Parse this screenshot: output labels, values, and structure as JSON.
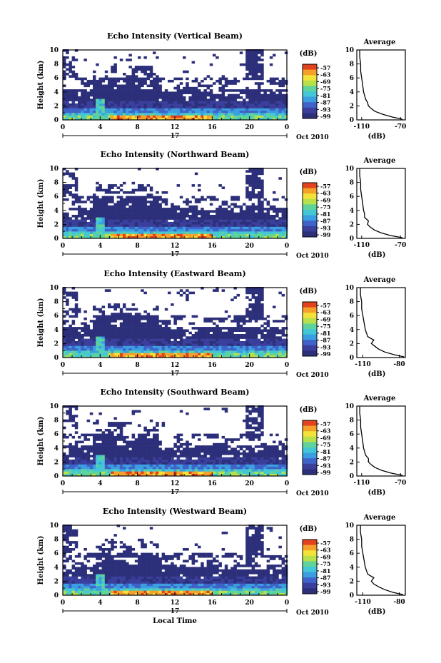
{
  "chart_data": [
    {
      "type": "heatmap",
      "title": "Echo Intensity (Vertical Beam)",
      "ylabel": "Height (km)",
      "xlabel": "",
      "x_ticks": [
        "0",
        "4",
        "8",
        "12",
        "16",
        "20",
        "0"
      ],
      "y_ticks": [
        "0",
        "2",
        "4",
        "6",
        "8",
        "10"
      ],
      "xlim": [
        0,
        24
      ],
      "ylim": [
        0,
        10
      ],
      "date_day": "17",
      "date_label": "Oct 2010",
      "colorbar": {
        "unit": "(dB)",
        "ticks": [
          "-57",
          "-63",
          "-69",
          "-75",
          "-81",
          "-87",
          "-93",
          "-99"
        ]
      },
      "profile": {
        "title": "Average",
        "xlabel": "(dB)",
        "x_ticks": [
          "-110",
          "-70"
        ],
        "xlim": [
          -115,
          -65
        ],
        "heights": [
          0.1,
          0.4,
          0.8,
          1.2,
          1.6,
          2.0,
          2.5,
          3.0,
          3.5,
          4.0,
          5.0,
          6.0,
          7.0,
          8.0,
          9.0,
          10.0
        ],
        "values": [
          -68,
          -78,
          -88,
          -96,
          -100,
          -103,
          -104,
          -106,
          -107,
          -108,
          -109,
          -110,
          -111,
          -111,
          -112,
          -112
        ]
      }
    },
    {
      "type": "heatmap",
      "title": "Echo Intensity (Northward Beam)",
      "ylabel": "Height (km)",
      "xlabel": "",
      "x_ticks": [
        "0",
        "4",
        "8",
        "12",
        "16",
        "20",
        "0"
      ],
      "y_ticks": [
        "0",
        "2",
        "4",
        "6",
        "8",
        "10"
      ],
      "xlim": [
        0,
        24
      ],
      "ylim": [
        0,
        10
      ],
      "date_day": "17",
      "date_label": "Oct 2010",
      "colorbar": {
        "unit": "(dB)",
        "ticks": [
          "-57",
          "-63",
          "-69",
          "-75",
          "-81",
          "-87",
          "-93",
          "-99"
        ]
      },
      "profile": {
        "title": "Average",
        "xlabel": "(dB)",
        "x_ticks": [
          "-110",
          "-70"
        ],
        "xlim": [
          -115,
          -65
        ],
        "heights": [
          0.1,
          0.4,
          0.8,
          1.2,
          1.6,
          2.0,
          2.5,
          3.0,
          3.5,
          4.0,
          5.0,
          6.0,
          7.0,
          8.0,
          9.0,
          10.0
        ],
        "values": [
          -68,
          -80,
          -90,
          -97,
          -101,
          -104,
          -103,
          -107,
          -107,
          -108,
          -109,
          -110,
          -111,
          -111,
          -112,
          -112
        ]
      }
    },
    {
      "type": "heatmap",
      "title": "Echo Intensity (Eastward Beam)",
      "ylabel": "Height (km)",
      "xlabel": "",
      "x_ticks": [
        "0",
        "4",
        "8",
        "12",
        "16",
        "20",
        "0"
      ],
      "y_ticks": [
        "0",
        "2",
        "4",
        "6",
        "8",
        "10"
      ],
      "xlim": [
        0,
        24
      ],
      "ylim": [
        0,
        10
      ],
      "date_day": "17",
      "date_label": "Oct 2010",
      "colorbar": {
        "unit": "(dB)",
        "ticks": [
          "-57",
          "-63",
          "-69",
          "-75",
          "-81",
          "-87",
          "-93",
          "-99"
        ]
      },
      "profile": {
        "title": "Average",
        "xlabel": "(dB)",
        "x_ticks": [
          "-110",
          "-80"
        ],
        "xlim": [
          -115,
          -75
        ],
        "heights": [
          0.1,
          0.4,
          0.8,
          1.2,
          1.6,
          2.0,
          2.5,
          3.0,
          3.5,
          4.0,
          5.0,
          6.0,
          7.0,
          8.0,
          9.0,
          10.0
        ],
        "values": [
          -76,
          -84,
          -92,
          -97,
          -100,
          -103,
          -101,
          -106,
          -107,
          -108,
          -109,
          -110,
          -111,
          -111,
          -112,
          -112
        ]
      }
    },
    {
      "type": "heatmap",
      "title": "Echo Intensity (Southward Beam)",
      "ylabel": "Height (km)",
      "xlabel": "",
      "x_ticks": [
        "0",
        "4",
        "8",
        "12",
        "16",
        "20",
        "0"
      ],
      "y_ticks": [
        "0",
        "2",
        "4",
        "6",
        "8",
        "10"
      ],
      "xlim": [
        0,
        24
      ],
      "ylim": [
        0,
        10
      ],
      "date_day": "17",
      "date_label": "Oct 2010",
      "colorbar": {
        "unit": "(dB)",
        "ticks": [
          "-57",
          "-63",
          "-69",
          "-75",
          "-81",
          "-87",
          "-93",
          "-99"
        ]
      },
      "profile": {
        "title": "Average",
        "xlabel": "(dB)",
        "x_ticks": [
          "-110",
          "-70"
        ],
        "xlim": [
          -115,
          -65
        ],
        "heights": [
          0.1,
          0.4,
          0.8,
          1.2,
          1.6,
          2.0,
          2.5,
          3.0,
          3.5,
          4.0,
          5.0,
          6.0,
          7.0,
          8.0,
          9.0,
          10.0
        ],
        "values": [
          -68,
          -79,
          -89,
          -96,
          -100,
          -103,
          -103,
          -106,
          -107,
          -108,
          -109,
          -110,
          -111,
          -111,
          -112,
          -112
        ]
      }
    },
    {
      "type": "heatmap",
      "title": "Echo Intensity (Westward Beam)",
      "ylabel": "Height (km)",
      "xlabel": "Local Time",
      "x_ticks": [
        "0",
        "4",
        "8",
        "12",
        "16",
        "20",
        "0"
      ],
      "y_ticks": [
        "0",
        "2",
        "4",
        "6",
        "8",
        "10"
      ],
      "xlim": [
        0,
        24
      ],
      "ylim": [
        0,
        10
      ],
      "date_day": "17",
      "date_label": "Oct 2010",
      "colorbar": {
        "unit": "(dB)",
        "ticks": [
          "-57",
          "-63",
          "-69",
          "-75",
          "-81",
          "-87",
          "-93",
          "-99"
        ]
      },
      "profile": {
        "title": "Average",
        "xlabel": "(dB)",
        "x_ticks": [
          "-110",
          "-80"
        ],
        "xlim": [
          -115,
          -75
        ],
        "heights": [
          0.1,
          0.4,
          0.8,
          1.2,
          1.6,
          2.0,
          2.5,
          3.0,
          3.5,
          4.0,
          5.0,
          6.0,
          7.0,
          8.0,
          9.0,
          10.0
        ],
        "values": [
          -77,
          -85,
          -92,
          -97,
          -101,
          -103,
          -101,
          -106,
          -107,
          -108,
          -109,
          -110,
          -111,
          -111,
          -112,
          -112
        ]
      }
    }
  ],
  "colors": {
    "scale": [
      "#2c2f7a",
      "#3b3f9c",
      "#3f63c8",
      "#3a9ee0",
      "#43c6d6",
      "#5fd39a",
      "#b8e04a",
      "#f2e23a",
      "#f5a02a",
      "#e2431e"
    ],
    "background_echo": "#2c2f7a"
  }
}
